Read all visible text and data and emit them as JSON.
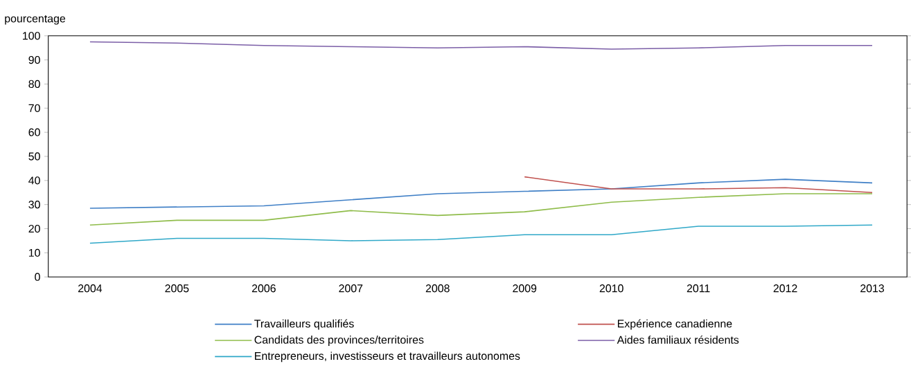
{
  "chart_data": {
    "type": "line",
    "ylabel": "pourcentage",
    "categories": [
      "2004",
      "2005",
      "2006",
      "2007",
      "2008",
      "2009",
      "2010",
      "2011",
      "2012",
      "2013"
    ],
    "series": [
      {
        "name": "Travailleurs qualifiés",
        "color": "#3f7fc6",
        "values": [
          28.5,
          29,
          29.5,
          32,
          34.5,
          35.5,
          36.5,
          39,
          40.5,
          39
        ]
      },
      {
        "name": "Expérience canadienne",
        "color": "#c0504d",
        "values": [
          null,
          null,
          null,
          null,
          null,
          41.5,
          36.5,
          36.5,
          37,
          35
        ]
      },
      {
        "name": "Candidats des provinces/territoires",
        "color": "#8fbc4a",
        "values": [
          21.5,
          23.5,
          23.5,
          27.5,
          25.5,
          27,
          31,
          33,
          34.5,
          34.5
        ]
      },
      {
        "name": "Aides familiaux résidents",
        "color": "#7b5ea7",
        "values": [
          97.5,
          97,
          96,
          95.5,
          95,
          95.5,
          94.5,
          95,
          96,
          96
        ]
      },
      {
        "name": "Entrepreneurs, investisseurs et travailleurs autonomes",
        "color": "#2fa8c8",
        "values": [
          14,
          16,
          16,
          15,
          15.5,
          17.5,
          17.5,
          21,
          21,
          21.5
        ]
      }
    ],
    "ylim": [
      0,
      100
    ],
    "yticks": [
      0,
      10,
      20,
      30,
      40,
      50,
      60,
      70,
      80,
      90,
      100
    ],
    "legend": "bottom",
    "grid": false,
    "marker": "none",
    "line_style": "solid"
  }
}
